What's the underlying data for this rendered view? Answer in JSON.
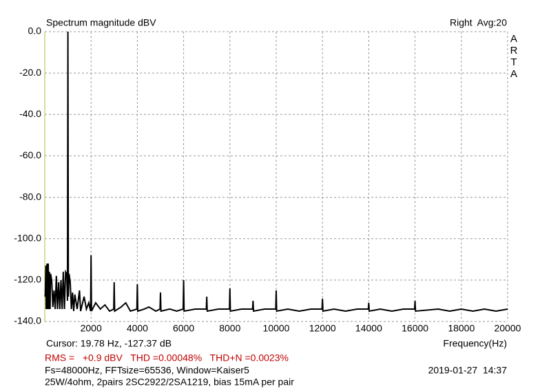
{
  "chart_data": {
    "type": "line",
    "title": "Spectrum magnitude dBV",
    "channel": "Right  Avg:20",
    "logo": "ARTA",
    "x_label": "Frequency(Hz)",
    "cursor_readout": "Cursor: 19.78 Hz, -127.37 dB",
    "measurements": "RMS =   +0.9 dBV   THD =0.00048%   THD+N =0.0023%",
    "settings": "Fs=48000Hz, FFTsize=65536, Window=Kaiser5",
    "timestamp": "2019-01-27  14:37",
    "description": "25W/4ohm, 2pairs 2SC2922/2SA1219, bias 15mA per pair",
    "color": "#000000",
    "grid": true,
    "xlim": [
      0,
      20000
    ],
    "ylim": [
      -140,
      0
    ],
    "xticks": [
      2000,
      4000,
      6000,
      8000,
      10000,
      12000,
      14000,
      16000,
      18000,
      20000
    ],
    "yticks": [
      {
        "value": 0,
        "label": "0.0"
      },
      {
        "value": -20,
        "label": "-20.0"
      },
      {
        "value": -40,
        "label": "-40.0"
      },
      {
        "value": -60,
        "label": "-60.0"
      },
      {
        "value": -80,
        "label": "-80.0"
      },
      {
        "value": -100,
        "label": "-100.0"
      },
      {
        "value": -120,
        "label": "-120.0"
      },
      {
        "value": -140,
        "label": "-140.0"
      }
    ],
    "x": [
      10,
      20,
      50,
      60,
      100,
      120,
      150,
      180,
      200,
      230,
      250,
      300,
      350,
      400,
      450,
      500,
      550,
      600,
      650,
      700,
      750,
      800,
      850,
      900,
      950,
      980,
      1000,
      1020,
      1050,
      1100,
      1150,
      1200,
      1250,
      1300,
      1400,
      1500,
      1550,
      1700,
      1800,
      1900,
      1980,
      2000,
      2020,
      2200,
      2400,
      2600,
      2800,
      2980,
      3000,
      3020,
      3300,
      3500,
      3700,
      3980,
      4000,
      4020,
      4300,
      4500,
      4800,
      4980,
      5000,
      5020,
      5400,
      5700,
      5980,
      6000,
      6020,
      6500,
      6980,
      7000,
      7020,
      7500,
      7980,
      8000,
      8020,
      8500,
      8980,
      9000,
      9020,
      9500,
      9980,
      10000,
      10020,
      10500,
      11000,
      11500,
      11980,
      12000,
      12020,
      12500,
      13000,
      13500,
      13980,
      14000,
      14020,
      14500,
      15000,
      15500,
      15980,
      16000,
      16020,
      17000,
      17500,
      18000,
      18500,
      19000,
      19500,
      20000
    ],
    "values": [
      -127,
      -128,
      -113,
      -134,
      -112,
      -134,
      -112,
      -134,
      -116,
      -134,
      -117,
      -120,
      -133,
      -125,
      -134,
      -118,
      -134,
      -121,
      -134,
      -120,
      -134,
      -116,
      -134,
      -116,
      -117,
      -130,
      0,
      -128,
      -117,
      -121,
      -134,
      -126,
      -135,
      -127,
      -134,
      -125,
      -135,
      -128,
      -134,
      -131,
      -135,
      -108,
      -135,
      -131,
      -134,
      -132,
      -135,
      -134,
      -121,
      -135,
      -133,
      -131,
      -135,
      -134,
      -122,
      -135,
      -134,
      -133,
      -135,
      -134,
      -126,
      -135,
      -134,
      -135,
      -134,
      -120,
      -135,
      -134,
      -134,
      -128,
      -135,
      -134,
      -134,
      -124,
      -135,
      -134,
      -134,
      -130,
      -135,
      -134,
      -134,
      -125,
      -135,
      -134,
      -135,
      -134,
      -134,
      -129,
      -135,
      -134,
      -135,
      -134,
      -134,
      -131,
      -135,
      -134,
      -135,
      -134,
      -134,
      -130,
      -135,
      -134,
      -135,
      -134,
      -135,
      -134,
      -135,
      -134
    ]
  }
}
